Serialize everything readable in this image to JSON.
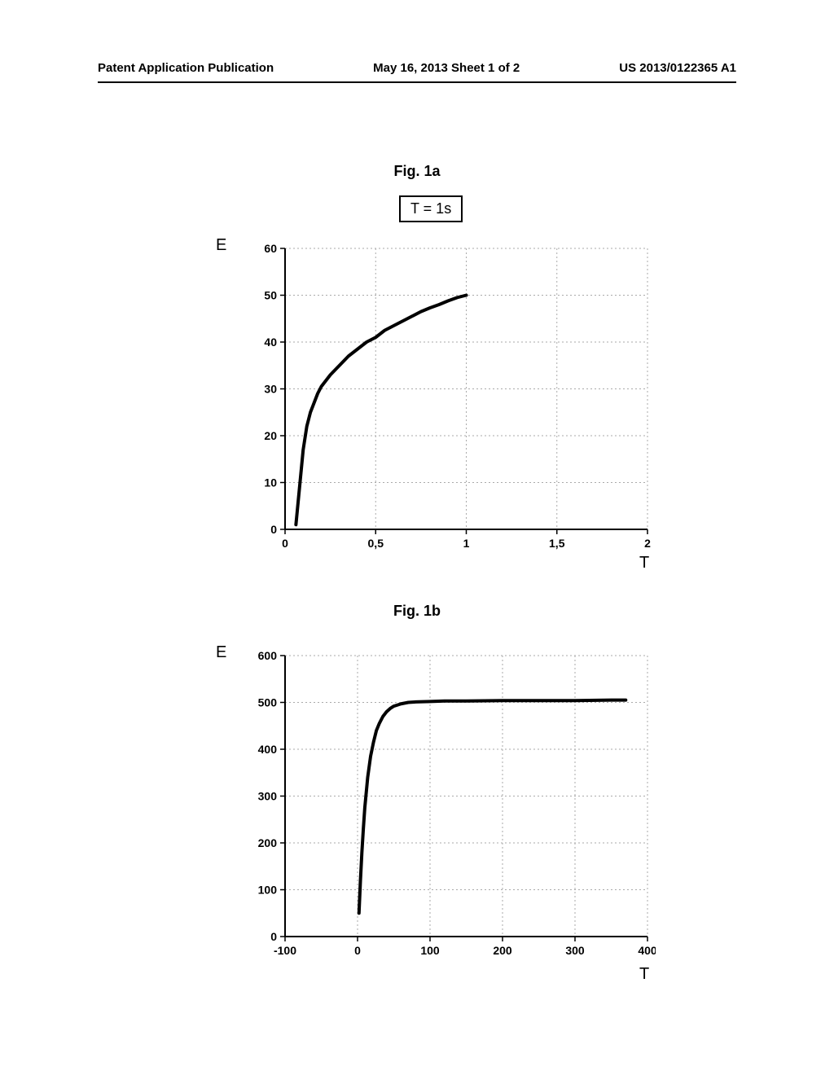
{
  "header": {
    "left": "Patent Application Publication",
    "center": "May 16, 2013  Sheet 1 of 2",
    "right": "US 2013/0122365 A1"
  },
  "fig1a": {
    "title": "Fig. 1a",
    "legend": "T = 1s",
    "ylabel": "E",
    "xlabel": "T",
    "chart": {
      "type": "line",
      "xlim": [
        0,
        2
      ],
      "ylim": [
        0,
        60
      ],
      "xticks": [
        0,
        0.5,
        1,
        1.5,
        2
      ],
      "xtick_labels": [
        "0",
        "0,5",
        "1",
        "1,5",
        "2"
      ],
      "yticks": [
        0,
        10,
        20,
        30,
        40,
        50,
        60
      ],
      "ytick_labels": [
        "0",
        "10",
        "20",
        "30",
        "40",
        "50",
        "60"
      ],
      "grid_color": "#aaaaaa",
      "grid_dash": "2,3",
      "axis_color": "#000000",
      "axis_width": 2,
      "line_color": "#000000",
      "line_width": 4,
      "background_color": "#ffffff",
      "tick_fontsize": 14,
      "tick_fontweight": "bold",
      "series_x": [
        0.06,
        0.07,
        0.08,
        0.09,
        0.1,
        0.12,
        0.14,
        0.16,
        0.18,
        0.2,
        0.25,
        0.3,
        0.35,
        0.4,
        0.45,
        0.5,
        0.55,
        0.6,
        0.65,
        0.7,
        0.75,
        0.8,
        0.85,
        0.9,
        0.95,
        1.0
      ],
      "series_y": [
        1,
        5,
        9,
        13,
        17,
        22,
        25,
        27,
        29,
        30.5,
        33,
        35,
        37,
        38.5,
        40,
        41,
        42.5,
        43.5,
        44.5,
        45.5,
        46.5,
        47.3,
        48,
        48.8,
        49.5,
        50
      ]
    }
  },
  "fig1b": {
    "title": "Fig. 1b",
    "ylabel": "E",
    "xlabel": "T",
    "chart": {
      "type": "line",
      "xlim": [
        -100,
        400
      ],
      "ylim": [
        0,
        600
      ],
      "xticks": [
        -100,
        0,
        100,
        200,
        300,
        400
      ],
      "xtick_labels": [
        "-100",
        "0",
        "100",
        "200",
        "300",
        "400"
      ],
      "yticks": [
        0,
        100,
        200,
        300,
        400,
        500,
        600
      ],
      "ytick_labels": [
        "0",
        "100",
        "200",
        "300",
        "400",
        "500",
        "600"
      ],
      "grid_color": "#aaaaaa",
      "grid_dash": "2,3",
      "axis_color": "#000000",
      "axis_width": 2,
      "line_color": "#000000",
      "line_width": 4,
      "background_color": "#ffffff",
      "tick_fontsize": 14,
      "tick_fontweight": "bold",
      "series_x": [
        2,
        4,
        6,
        8,
        10,
        14,
        18,
        22,
        26,
        30,
        35,
        40,
        45,
        50,
        60,
        70,
        80,
        100,
        120,
        150,
        200,
        250,
        300,
        350,
        370
      ],
      "series_y": [
        50,
        120,
        180,
        230,
        275,
        340,
        385,
        415,
        440,
        455,
        470,
        480,
        487,
        492,
        497,
        500,
        501,
        502,
        503,
        503,
        504,
        504,
        504,
        505,
        505
      ]
    }
  }
}
